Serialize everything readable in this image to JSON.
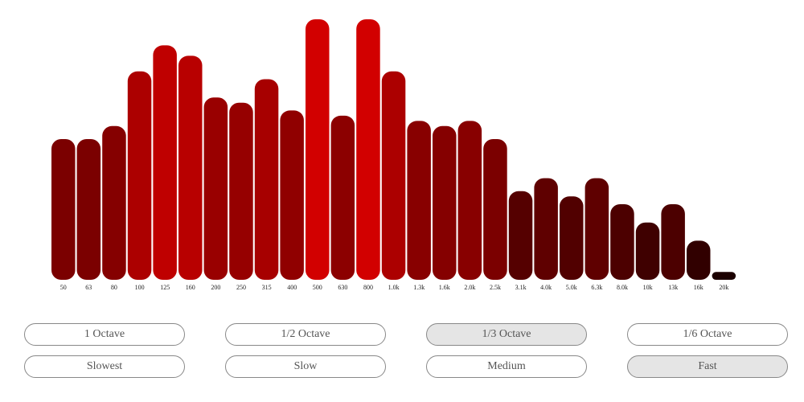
{
  "chart_data": {
    "type": "bar",
    "categories": [
      "50",
      "63",
      "80",
      "100",
      "125",
      "160",
      "200",
      "250",
      "315",
      "400",
      "500",
      "630",
      "800",
      "1.0k",
      "1.3k",
      "1.6k",
      "2.0k",
      "2.5k",
      "3.1k",
      "4.0k",
      "5.0k",
      "6.3k",
      "8.0k",
      "10k",
      "13k",
      "16k",
      "20k"
    ],
    "values": [
      0.54,
      0.54,
      0.59,
      0.8,
      0.9,
      0.86,
      0.7,
      0.68,
      0.77,
      0.65,
      1.0,
      0.63,
      1.0,
      0.8,
      0.61,
      0.59,
      0.61,
      0.54,
      0.34,
      0.39,
      0.32,
      0.39,
      0.29,
      0.22,
      0.29,
      0.15,
      0.03
    ],
    "title": "",
    "xlabel": "",
    "ylabel": "",
    "ylim": [
      0,
      1
    ],
    "grid": false,
    "legend": "none",
    "color_low": "#150000",
    "color_high": "#d20000"
  },
  "controls": {
    "resolution": {
      "options": [
        "1 Octave",
        "1/2 Octave",
        "1/3 Octave",
        "1/6 Octave"
      ],
      "selected": "1/3 Octave"
    },
    "speed": {
      "options": [
        "Slowest",
        "Slow",
        "Medium",
        "Fast"
      ],
      "selected": "Fast"
    }
  }
}
